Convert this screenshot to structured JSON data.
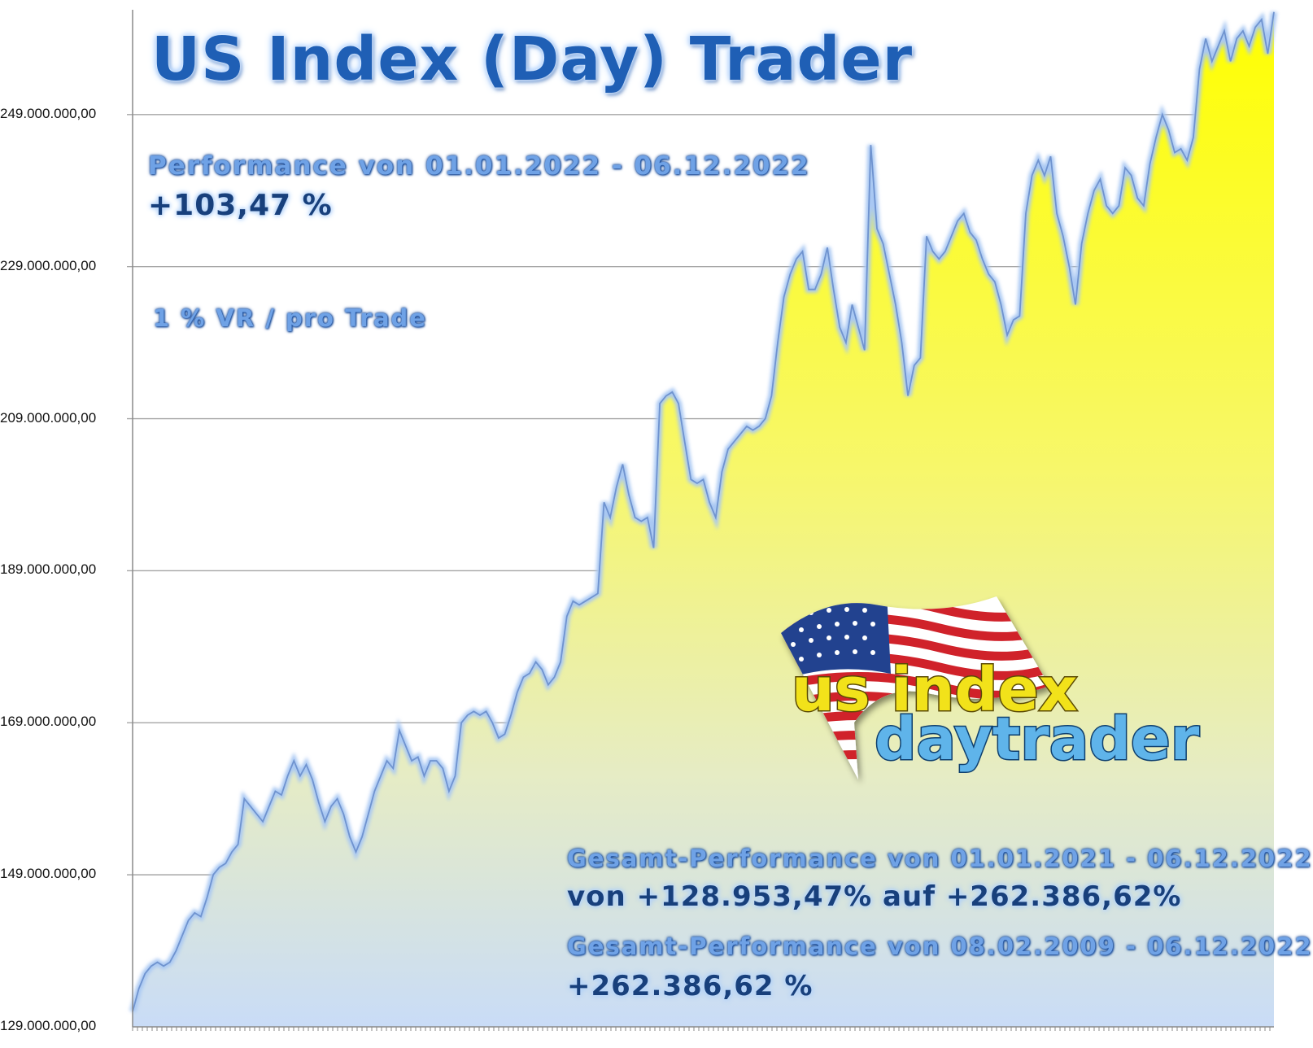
{
  "texts": {
    "title": "US Index (Day) Trader",
    "perf_label": "Performance  von  01.01.2022 - 06.12.2022",
    "perf_value": "+103,47 %",
    "risk_label": "1 % VR / pro Trade",
    "total1_label": "Gesamt-Performance  von  01.01.2021 - 06.12.2022",
    "total1_value": "von +128.953,47% auf  +262.386,62%",
    "total2_label": "Gesamt-Performance  von  08.02.2009 - 06.12.2022",
    "total2_value": "+262.386,62 %"
  },
  "logo": {
    "line1": "us index",
    "line2": "daytrader",
    "flag": "us-flag-icon"
  },
  "colors": {
    "fill_top": "#ffff00",
    "fill_bottom": "#c9dcf7",
    "line": "#6f93cf",
    "line_glow": "#a9c8f3",
    "gridline": "#a6a6a6",
    "title": "#1f5fb5"
  },
  "chart_data": {
    "type": "area",
    "title": "US Index (Day) Trader",
    "xlabel": "",
    "ylabel": "",
    "ylim": [
      129000000,
      263000000
    ],
    "y_ticks": [
      129000000,
      149000000,
      169000000,
      189000000,
      209000000,
      229000000,
      249000000
    ],
    "y_tick_labels": [
      "129.000.000,00",
      "149.000.000,00",
      "169.000.000,00",
      "189.000.000,00",
      "209.000.000,00",
      "229.000.000,00",
      "249.000.000,00"
    ],
    "grid": true,
    "legend": "none",
    "series": [
      {
        "values": [
          131000000,
          134000000,
          136000000,
          137000000,
          137500000,
          137000000,
          137500000,
          139000000,
          141000000,
          143000000,
          144000000,
          143500000,
          146000000,
          149000000,
          150000000,
          150500000,
          152000000,
          153000000,
          159000000,
          158000000,
          157000000,
          156000000,
          158000000,
          160000000,
          159500000,
          162000000,
          164000000,
          162000000,
          163500000,
          161500000,
          158500000,
          156000000,
          158000000,
          159000000,
          157000000,
          154000000,
          152000000,
          154000000,
          157000000,
          160000000,
          162000000,
          164000000,
          163000000,
          168000000,
          166000000,
          164000000,
          164500000,
          162000000,
          164000000,
          164000000,
          163000000,
          160000000,
          162000000,
          169000000,
          170000000,
          170500000,
          170000000,
          170500000,
          169000000,
          167000000,
          167500000,
          170000000,
          173000000,
          175000000,
          175500000,
          177000000,
          176000000,
          174000000,
          175000000,
          177000000,
          183000000,
          185000000,
          184500000,
          185000000,
          185500000,
          186000000,
          198000000,
          196000000,
          200000000,
          203000000,
          199000000,
          196000000,
          195500000,
          196000000,
          192000000,
          211000000,
          212000000,
          212500000,
          211000000,
          206000000,
          201000000,
          200500000,
          201000000,
          198000000,
          196000000,
          202000000,
          205000000,
          206000000,
          207000000,
          208000000,
          207500000,
          208000000,
          209000000,
          212000000,
          219000000,
          225000000,
          228000000,
          230000000,
          231000000,
          226000000,
          226000000,
          228000000,
          231500000,
          226000000,
          221000000,
          219000000,
          224000000,
          221000000,
          218000000,
          245000000,
          234000000,
          232000000,
          228000000,
          224000000,
          219000000,
          212000000,
          216000000,
          217000000,
          233000000,
          231000000,
          230000000,
          231000000,
          233000000,
          235000000,
          236000000,
          233500000,
          232500000,
          230000000,
          228000000,
          227000000,
          224000000,
          220000000,
          222000000,
          222500000,
          236000000,
          241000000,
          243000000,
          241000000,
          243500000,
          236000000,
          233000000,
          229000000,
          224000000,
          232000000,
          236000000,
          239000000,
          240500000,
          237000000,
          236000000,
          237000000,
          242000000,
          241000000,
          238000000,
          237000000,
          242500000,
          246000000,
          249000000,
          247000000,
          244000000,
          244500000,
          243000000,
          246000000,
          255000000,
          259000000,
          256000000,
          258000000,
          260000000,
          256000000,
          259000000,
          260000000,
          258000000,
          260500000,
          261500000,
          257000000,
          262500000
        ]
      }
    ]
  }
}
